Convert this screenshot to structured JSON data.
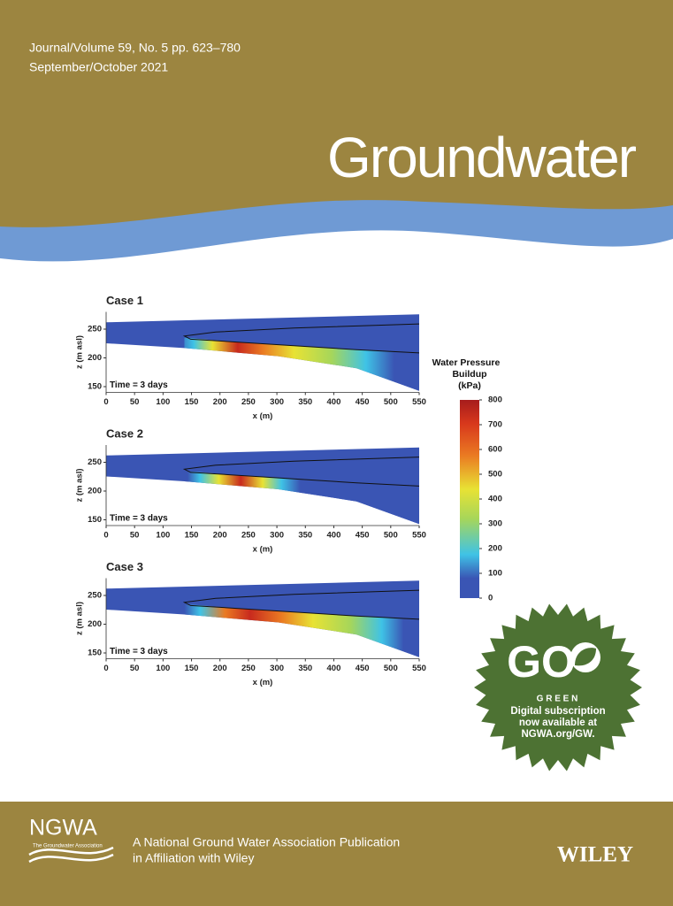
{
  "header": {
    "journal": "Journal/Volume 59, No. 5 pp. 623–780",
    "issue": "September/October 2021",
    "title": "Groundwater"
  },
  "chart_data": [
    {
      "type": "heatmap",
      "title": "Case 1",
      "annotation": "Time = 3 days",
      "xlabel": "x (m)",
      "ylabel": "z (m asl)",
      "xlim": [
        0,
        550
      ],
      "xticks": [
        0,
        50,
        100,
        150,
        200,
        250,
        300,
        350,
        400,
        450,
        500,
        550
      ],
      "ylim": [
        140,
        280
      ],
      "yticks": [
        150,
        200,
        250
      ]
    },
    {
      "type": "heatmap",
      "title": "Case 2",
      "annotation": "Time = 3 days",
      "xlabel": "x (m)",
      "ylabel": "z (m asl)",
      "xlim": [
        0,
        550
      ],
      "xticks": [
        0,
        50,
        100,
        150,
        200,
        250,
        300,
        350,
        400,
        450,
        500,
        550
      ],
      "ylim": [
        140,
        280
      ],
      "yticks": [
        150,
        200,
        250
      ]
    },
    {
      "type": "heatmap",
      "title": "Case 3",
      "annotation": "Time = 3 days",
      "xlabel": "x (m)",
      "ylabel": "z (m asl)",
      "xlim": [
        0,
        550
      ],
      "xticks": [
        0,
        50,
        100,
        150,
        200,
        250,
        300,
        350,
        400,
        450,
        500,
        550
      ],
      "ylim": [
        140,
        280
      ],
      "yticks": [
        150,
        200,
        250
      ]
    }
  ],
  "colorbar": {
    "title": [
      "Water Pressure",
      "Buildup",
      "(kPa)"
    ],
    "lim": [
      0,
      800
    ],
    "ticks": [
      0,
      100,
      200,
      300,
      400,
      500,
      600,
      700,
      800
    ]
  },
  "badge": {
    "go": "GO",
    "green": "G R E E N",
    "lines": [
      "Digital subscription",
      "now available at",
      "NGWA.org/GW."
    ]
  },
  "footer": {
    "logo": "NGWA",
    "logo_sub": "The Groundwater Association",
    "lines": [
      "A National Ground Water Association Publication",
      "in Affiliation with Wiley"
    ],
    "publisher": "WILEY"
  }
}
